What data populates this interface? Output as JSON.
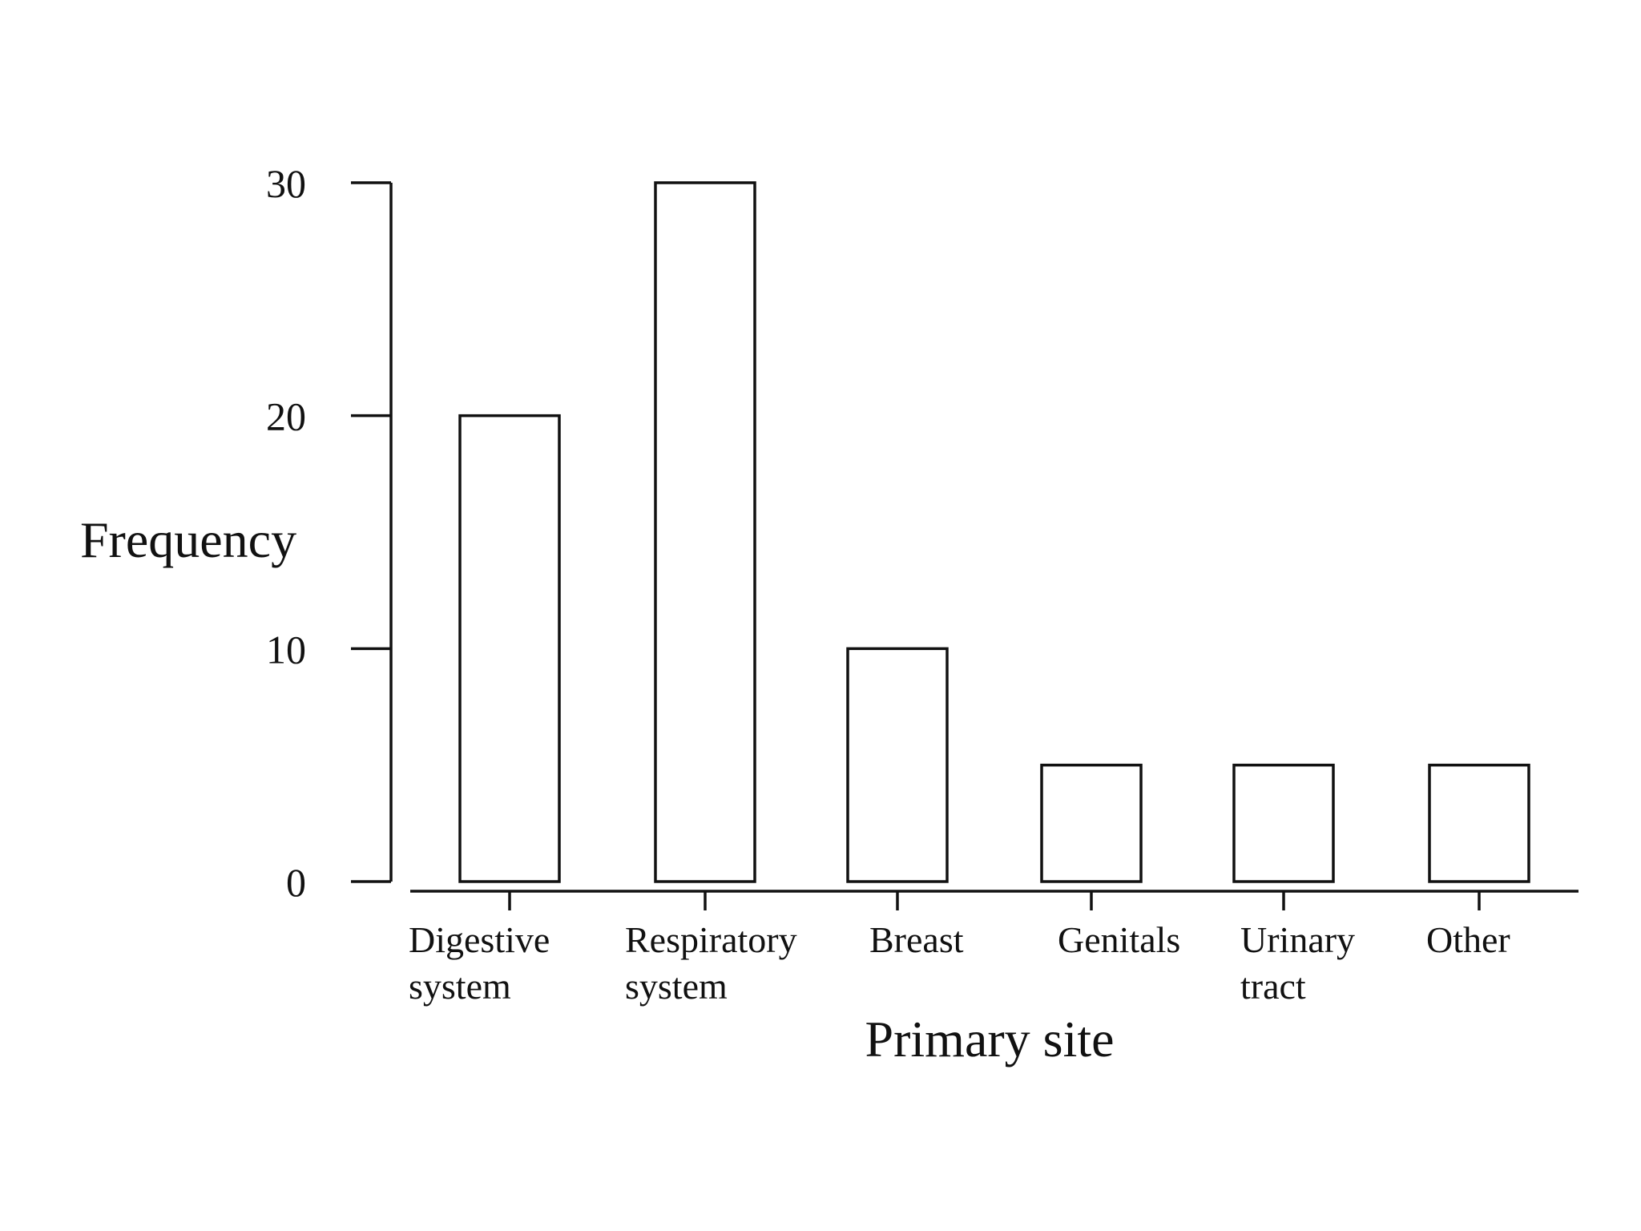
{
  "chart_data": {
    "type": "bar",
    "categories": [
      [
        "Digestive",
        "system"
      ],
      [
        "Respiratory",
        "system"
      ],
      [
        "Breast"
      ],
      [
        "Genitals"
      ],
      [
        "Urinary",
        "tract"
      ],
      [
        "Other"
      ]
    ],
    "values": [
      20,
      30,
      10,
      5,
      5,
      5
    ],
    "title": "",
    "xlabel": "Primary site",
    "ylabel": "Frequency",
    "ylim": [
      0,
      30
    ],
    "yticks": [
      "0",
      "10",
      "20",
      "30"
    ],
    "grid": false,
    "legend": "none",
    "colors": {
      "bar_fill": "#ffffff",
      "bar_stroke": "#111111",
      "background": "#ffffff"
    }
  }
}
